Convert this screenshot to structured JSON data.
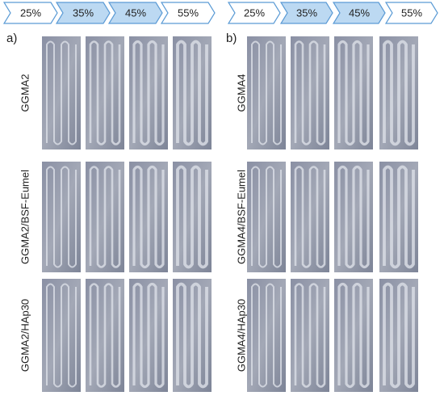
{
  "panels": [
    {
      "label": "a)",
      "steps": [
        "25%",
        "35%",
        "45%",
        "55%"
      ],
      "rows": [
        "GGMA2",
        "GGMA2/BSF-Eumel",
        "GGMA2/HAp30"
      ]
    },
    {
      "label": "b)",
      "steps": [
        "25%",
        "35%",
        "45%",
        "55%"
      ],
      "rows": [
        "GGMA4",
        "GGMA4/BSF-Eumel",
        "GGMA4/HAp30"
      ]
    }
  ]
}
